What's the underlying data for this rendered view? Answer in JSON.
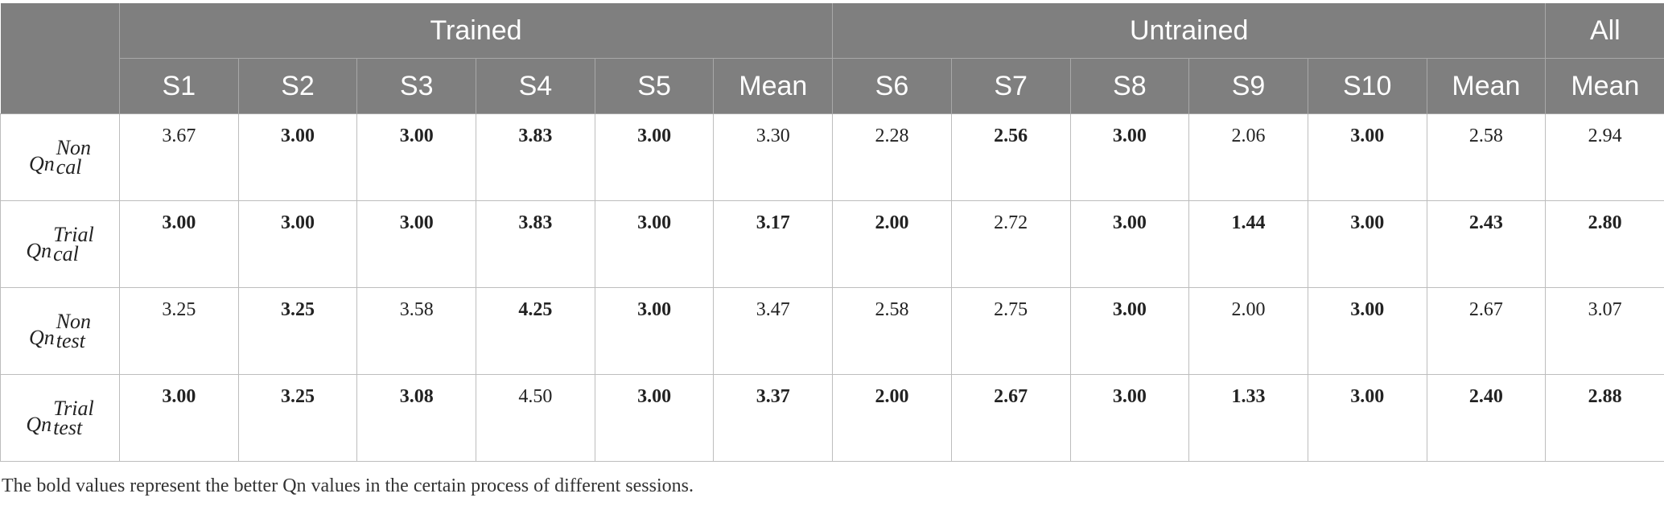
{
  "header": {
    "groups": [
      {
        "label": "Trained",
        "span": 6
      },
      {
        "label": "Untrained",
        "span": 6
      },
      {
        "label": "All",
        "span": 1
      }
    ],
    "columns": [
      "S1",
      "S2",
      "S3",
      "S4",
      "S5",
      "Mean",
      "S6",
      "S7",
      "S8",
      "S9",
      "S10",
      "Mean",
      "Mean"
    ]
  },
  "rows": [
    {
      "label": {
        "base": "Qn",
        "sup": "Non",
        "sub": "cal"
      },
      "cells": [
        {
          "v": "3.67",
          "bold": false
        },
        {
          "v": "3.00",
          "bold": true
        },
        {
          "v": "3.00",
          "bold": true
        },
        {
          "v": "3.83",
          "bold": true
        },
        {
          "v": "3.00",
          "bold": true
        },
        {
          "v": "3.30",
          "bold": false
        },
        {
          "v": "2.28",
          "bold": false
        },
        {
          "v": "2.56",
          "bold": true
        },
        {
          "v": "3.00",
          "bold": true
        },
        {
          "v": "2.06",
          "bold": false
        },
        {
          "v": "3.00",
          "bold": true
        },
        {
          "v": "2.58",
          "bold": false
        },
        {
          "v": "2.94",
          "bold": false
        }
      ]
    },
    {
      "label": {
        "base": "Qn",
        "sup": "Trial",
        "sub": "cal"
      },
      "cells": [
        {
          "v": "3.00",
          "bold": true
        },
        {
          "v": "3.00",
          "bold": true
        },
        {
          "v": "3.00",
          "bold": true
        },
        {
          "v": "3.83",
          "bold": true
        },
        {
          "v": "3.00",
          "bold": true
        },
        {
          "v": "3.17",
          "bold": true
        },
        {
          "v": "2.00",
          "bold": true
        },
        {
          "v": "2.72",
          "bold": false
        },
        {
          "v": "3.00",
          "bold": true
        },
        {
          "v": "1.44",
          "bold": true
        },
        {
          "v": "3.00",
          "bold": true
        },
        {
          "v": "2.43",
          "bold": true
        },
        {
          "v": "2.80",
          "bold": true
        }
      ]
    },
    {
      "label": {
        "base": "Qn",
        "sup": "Non",
        "sub": "test"
      },
      "cells": [
        {
          "v": "3.25",
          "bold": false
        },
        {
          "v": "3.25",
          "bold": true
        },
        {
          "v": "3.58",
          "bold": false
        },
        {
          "v": "4.25",
          "bold": true
        },
        {
          "v": "3.00",
          "bold": true
        },
        {
          "v": "3.47",
          "bold": false
        },
        {
          "v": "2.58",
          "bold": false
        },
        {
          "v": "2.75",
          "bold": false
        },
        {
          "v": "3.00",
          "bold": true
        },
        {
          "v": "2.00",
          "bold": false
        },
        {
          "v": "3.00",
          "bold": true
        },
        {
          "v": "2.67",
          "bold": false
        },
        {
          "v": "3.07",
          "bold": false
        }
      ]
    },
    {
      "label": {
        "base": "Qn",
        "sup": "Trial",
        "sub": "test"
      },
      "cells": [
        {
          "v": "3.00",
          "bold": true
        },
        {
          "v": "3.25",
          "bold": true
        },
        {
          "v": "3.08",
          "bold": true
        },
        {
          "v": "4.50",
          "bold": false
        },
        {
          "v": "3.00",
          "bold": true
        },
        {
          "v": "3.37",
          "bold": true
        },
        {
          "v": "2.00",
          "bold": true
        },
        {
          "v": "2.67",
          "bold": true
        },
        {
          "v": "3.00",
          "bold": true
        },
        {
          "v": "1.33",
          "bold": true
        },
        {
          "v": "3.00",
          "bold": true
        },
        {
          "v": "2.40",
          "bold": true
        },
        {
          "v": "2.88",
          "bold": true
        }
      ]
    }
  ],
  "footnote": "The bold values represent the better Qn values in the certain process of different sessions."
}
